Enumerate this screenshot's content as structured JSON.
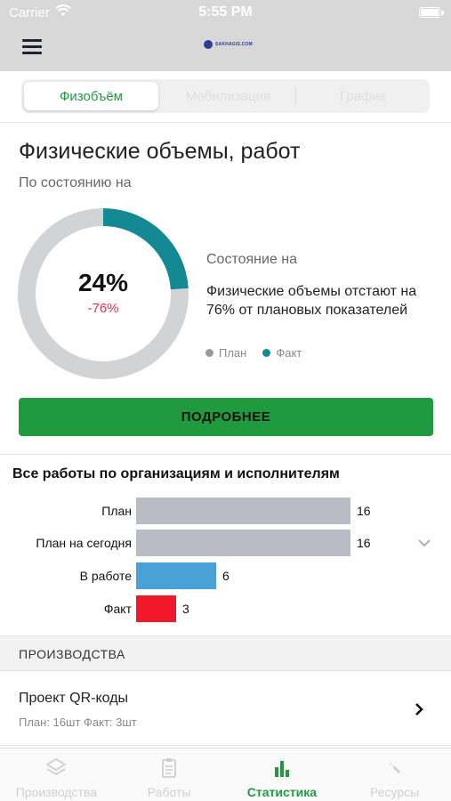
{
  "status_bar": {
    "carrier": "Carrier",
    "time": "5:55 PM"
  },
  "navbar": {
    "logo_text": "SAKHAGIS.COM"
  },
  "segments": [
    {
      "label": "Физобъём",
      "active": true
    },
    {
      "label": "Мобилизация",
      "active": false
    },
    {
      "label": "График",
      "active": false
    }
  ],
  "summary": {
    "title": "Физические объемы, работ",
    "subtitle": "По состоянию на",
    "percent": "24%",
    "delta": "-76%",
    "state_label": "Состояние на",
    "description": "Физические объемы отстают на 76% от плановых показателей",
    "legend": [
      {
        "label": "План",
        "color": "#9a9a9a"
      },
      {
        "label": "Факт",
        "color": "#138a93"
      }
    ],
    "button": "ПОДРОБНЕЕ"
  },
  "chart_data": [
    {
      "type": "pie",
      "labels": [
        "Факт",
        "План"
      ],
      "values": [
        24,
        76
      ],
      "colors": [
        "#138a93",
        "#d2d3d5"
      ]
    },
    {
      "type": "bar",
      "title": "Все работы по организациям и исполнителям",
      "categories": [
        "План",
        "План на сегодня",
        "В работе",
        "Факт"
      ],
      "values": [
        16,
        16,
        6,
        3
      ],
      "colors": [
        "#b9bcc4",
        "#b9bcc4",
        "#4aa0d8",
        "#f0172a"
      ],
      "xlim": [
        0,
        16
      ]
    }
  ],
  "production": {
    "heading": "ПРОИЗВОДСТВА",
    "items": [
      {
        "name": "Проект QR-коды",
        "meta": "План: 16шт Факт: 3шт"
      }
    ]
  },
  "tabs": [
    {
      "label": "Производства",
      "icon": "layers-icon",
      "active": false
    },
    {
      "label": "Работы",
      "icon": "clipboard-icon",
      "active": false
    },
    {
      "label": "Статистика",
      "icon": "bar-chart-icon",
      "active": true
    },
    {
      "label": "Ресурсы",
      "icon": "wrench-icon",
      "active": false
    }
  ]
}
